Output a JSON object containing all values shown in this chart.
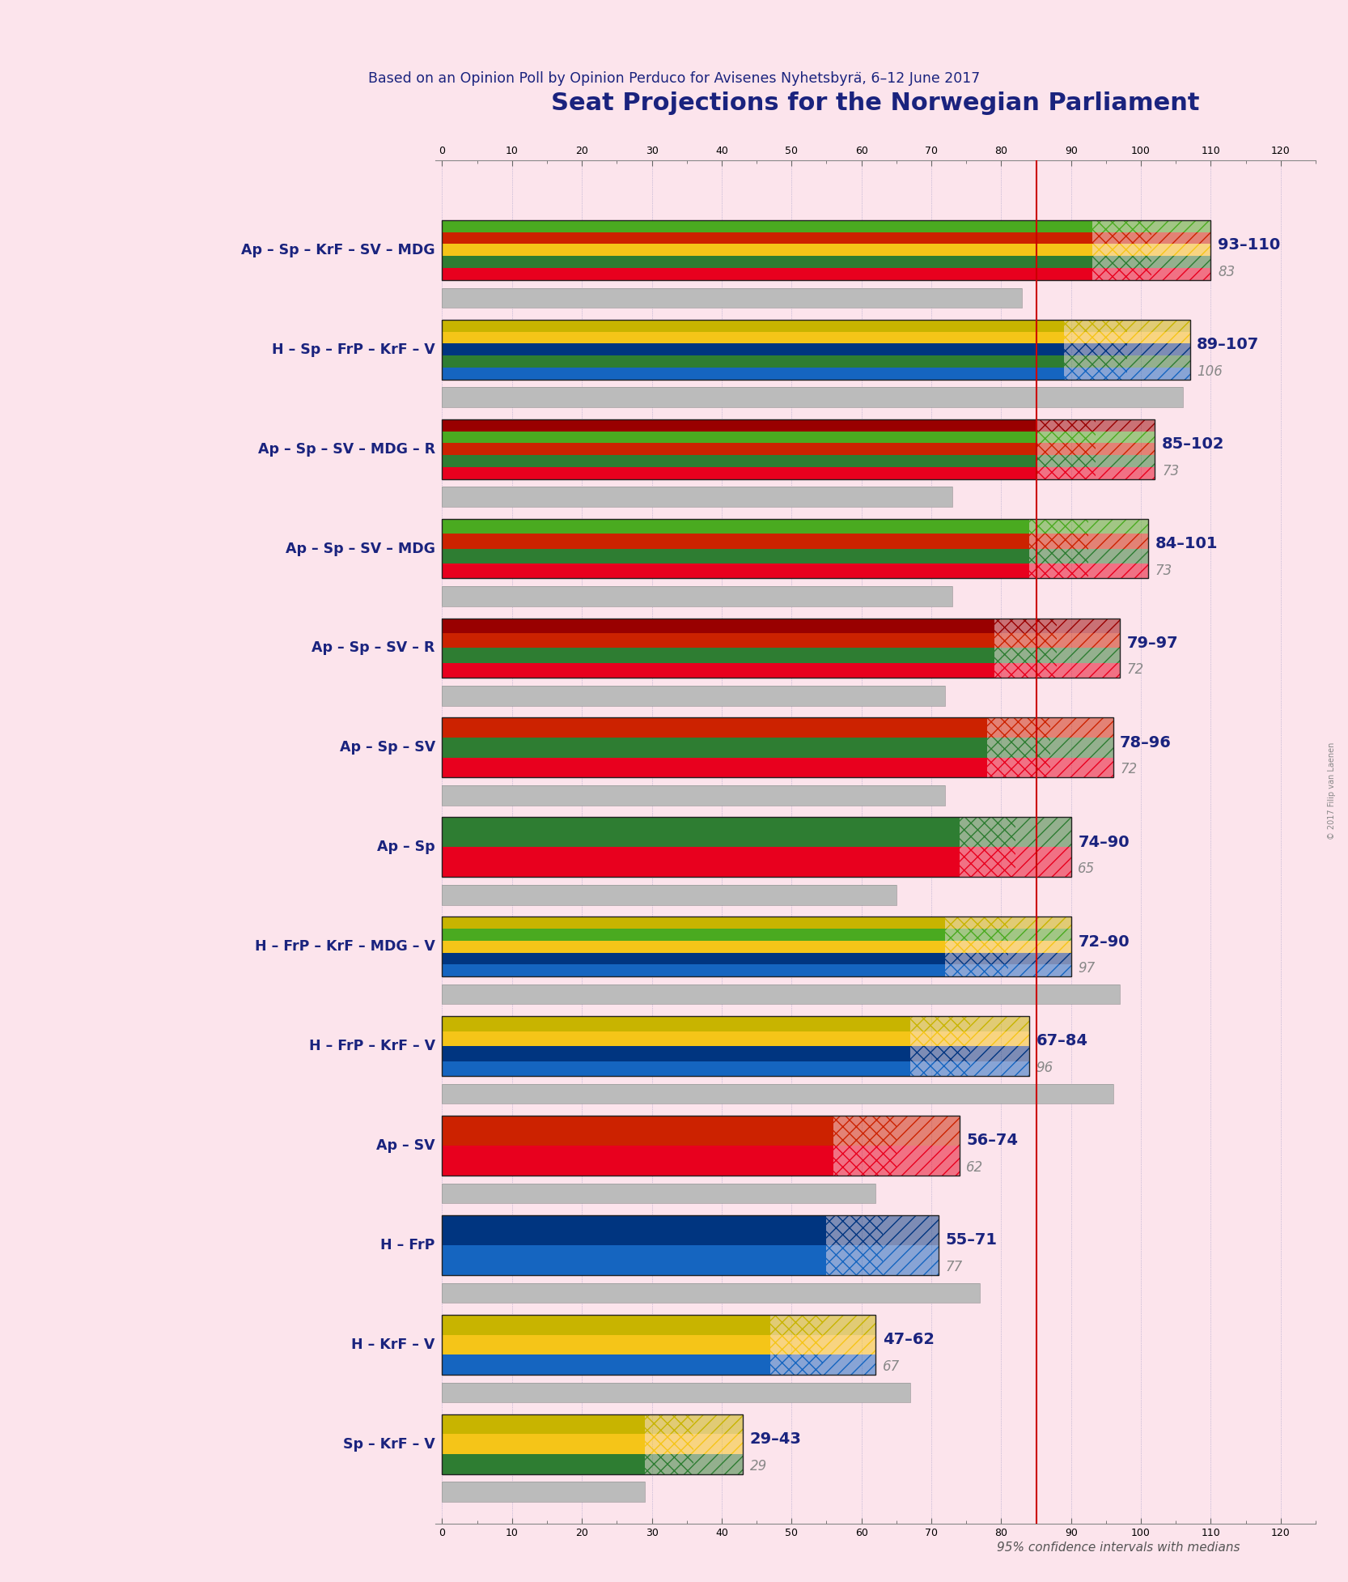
{
  "title": "Seat Projections for the Norwegian Parliament",
  "subtitle": "Based on an Opinion Poll by Opinion Perduco for Avisenes Nyhetsbyra, 6–12 June 2017",
  "background_color": "#fce4ec",
  "majority_line": 85,
  "coalitions": [
    {
      "label": "Ap – Sp – KrF – SV – MDG",
      "low": 93,
      "high": 110,
      "median": 83,
      "parties": [
        "Ap",
        "Sp",
        "KrF",
        "SV",
        "MDG"
      ],
      "type": "left"
    },
    {
      "label": "H – Sp – FrP – KrF – V",
      "low": 89,
      "high": 107,
      "median": 106,
      "parties": [
        "H",
        "Sp",
        "FrP",
        "KrF",
        "V"
      ],
      "type": "right"
    },
    {
      "label": "Ap – Sp – SV – MDG – R",
      "low": 85,
      "high": 102,
      "median": 73,
      "parties": [
        "Ap",
        "Sp",
        "SV",
        "MDG",
        "R"
      ],
      "type": "left"
    },
    {
      "label": "Ap – Sp – SV – MDG",
      "low": 84,
      "high": 101,
      "median": 73,
      "parties": [
        "Ap",
        "Sp",
        "SV",
        "MDG"
      ],
      "type": "left"
    },
    {
      "label": "Ap – Sp – SV – R",
      "low": 79,
      "high": 97,
      "median": 72,
      "parties": [
        "Ap",
        "Sp",
        "SV",
        "R"
      ],
      "type": "left"
    },
    {
      "label": "Ap – Sp – SV",
      "low": 78,
      "high": 96,
      "median": 72,
      "parties": [
        "Ap",
        "Sp",
        "SV"
      ],
      "type": "left"
    },
    {
      "label": "Ap – Sp",
      "low": 74,
      "high": 90,
      "median": 65,
      "parties": [
        "Ap",
        "Sp"
      ],
      "type": "left"
    },
    {
      "label": "H – FrP – KrF – MDG – V",
      "low": 72,
      "high": 90,
      "median": 97,
      "parties": [
        "H",
        "FrP",
        "KrF",
        "MDG",
        "V"
      ],
      "type": "right"
    },
    {
      "label": "H – FrP – KrF – V",
      "low": 67,
      "high": 84,
      "median": 96,
      "parties": [
        "H",
        "FrP",
        "KrF",
        "V"
      ],
      "type": "right"
    },
    {
      "label": "Ap – SV",
      "low": 56,
      "high": 74,
      "median": 62,
      "parties": [
        "Ap",
        "SV"
      ],
      "type": "left"
    },
    {
      "label": "H – FrP",
      "low": 55,
      "high": 71,
      "median": 77,
      "parties": [
        "H",
        "FrP"
      ],
      "type": "right"
    },
    {
      "label": "H – KrF – V",
      "low": 47,
      "high": 62,
      "median": 67,
      "parties": [
        "H",
        "KrF",
        "V"
      ],
      "type": "right"
    },
    {
      "label": "Sp – KrF – V",
      "low": 29,
      "high": 43,
      "median": 29,
      "parties": [
        "Sp",
        "KrF",
        "V"
      ],
      "type": "right"
    }
  ],
  "party_colors": {
    "Ap": "#e8001e",
    "Sp": "#2e7d32",
    "KrF": "#f5c518",
    "SV": "#cc2200",
    "MDG": "#4aaa20",
    "R": "#990000",
    "H": "#1565c0",
    "FrP": "#003580",
    "V": "#c8b400"
  },
  "xmax": 120,
  "xmin": 0,
  "note": "95% confidence intervals with medians",
  "copyright": "© 2017 Filip van Laenen"
}
